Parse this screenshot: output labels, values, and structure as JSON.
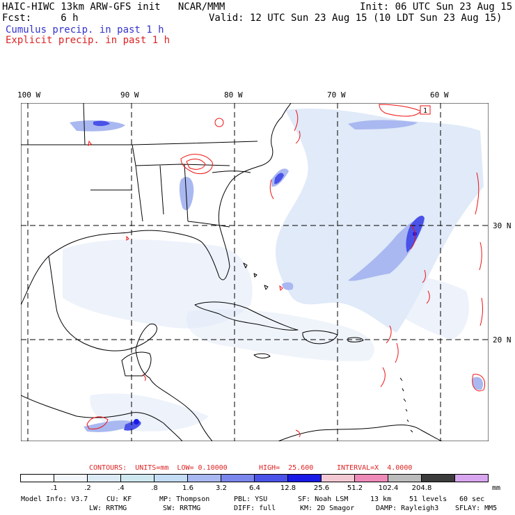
{
  "header": {
    "model_line": "HAIC-HIWC 13km ARW-GFS init   NCAR/MMM",
    "init_line": "Init: 06 UTC Sun 23 Aug 15",
    "fcst_line": "Fcst:     6 h",
    "valid_line": "Valid: 12 UTC Sun 23 Aug 15 (10 LDT Sun 23 Aug 15)",
    "field1": "Cumulus precip. in past 1 h",
    "field2": "Explicit precip. in past 1 h"
  },
  "colors": {
    "field1": "#3333cc",
    "field2": "#dd2222",
    "coast": "#000000",
    "contour": "#ee1111"
  },
  "map": {
    "lon_labels": [
      "100 W",
      "90 W",
      "80 W",
      "70 W",
      "60 W"
    ],
    "lat_labels": [
      "30 N",
      "20 N"
    ],
    "max_marker": "1"
  },
  "contour_line": {
    "contours": "CONTOURS:  UNITS=mm  LOW= 0.10000",
    "high": "HIGH=  25.600",
    "interval": "INTERVAL=X  4.0000"
  },
  "legend": {
    "unit": "mm",
    "labels": [
      ".1",
      ".2",
      ".4",
      ".8",
      "1.6",
      "3.2",
      "6.4",
      "12.8",
      "25.6",
      "51.2",
      "102.4",
      "204.8"
    ],
    "colors": [
      "#ffffff",
      "#f2f6fb",
      "#dceaf6",
      "#cfe8f0",
      "#c4dcf4",
      "#a9b8f0",
      "#7b86ec",
      "#4a52e8",
      "#1a1ae6",
      "#f4c8d2",
      "#ee8ab8",
      "#bcbcbc",
      "#3c3c3c",
      "#d8a6ee"
    ]
  },
  "footer": {
    "line1": [
      "Model Info: V3.7",
      "CU: KF",
      "MP: Thompson",
      "PBL: YSU",
      "SF: Noah LSM",
      "13 km",
      "51 levels",
      "60 sec"
    ],
    "line2": [
      "LW: RRTMG",
      "SW: RRTMG",
      "DIFF: full",
      "KM: 2D Smagor",
      "DAMP: Rayleigh3",
      "SFLAY: MM5"
    ]
  }
}
